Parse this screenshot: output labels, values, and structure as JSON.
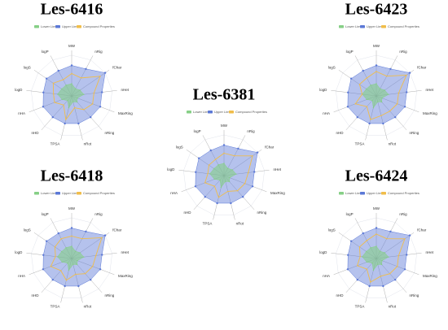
{
  "chart_data": [
    {
      "type": "radar",
      "title": "Les-6416",
      "categories": [
        "MW",
        "nRig",
        "fChar",
        "nHet",
        "MaxRing",
        "nRing",
        "nRot",
        "TPSA",
        "nHD",
        "nHA",
        "logD",
        "logS",
        "logP"
      ],
      "rlim": [
        0,
        1
      ],
      "series": [
        {
          "name": "Lower Limit",
          "color": "#86cf86",
          "values": [
            0.3,
            0.2,
            0.25,
            0.3,
            0.15,
            0.2,
            0.15,
            0.3,
            0.15,
            0.25,
            0.35,
            0.3,
            0.3
          ]
        },
        {
          "name": "Upper Limit",
          "color": "#5b78d6",
          "values": [
            0.75,
            0.75,
            1.0,
            0.75,
            0.75,
            0.7,
            0.7,
            0.7,
            0.7,
            0.75,
            0.7,
            0.75,
            0.7
          ]
        },
        {
          "name": "Compound Properties",
          "color": "#f0bd4a",
          "values": [
            0.55,
            0.5,
            0.85,
            0.55,
            0.55,
            0.45,
            0.3,
            0.6,
            0.3,
            0.45,
            0.45,
            0.55,
            0.45
          ]
        }
      ]
    },
    {
      "type": "radar",
      "title": "Les-6423",
      "categories": [
        "MW",
        "nRig",
        "fChar",
        "nHet",
        "MaxRing",
        "nRing",
        "nRot",
        "TPSA",
        "nHD",
        "nHA",
        "logD",
        "logS",
        "logP"
      ],
      "rlim": [
        0,
        1
      ],
      "series": [
        {
          "name": "Lower Limit",
          "color": "#86cf86",
          "values": [
            0.3,
            0.2,
            0.25,
            0.3,
            0.15,
            0.2,
            0.15,
            0.3,
            0.15,
            0.25,
            0.35,
            0.3,
            0.3
          ]
        },
        {
          "name": "Upper Limit",
          "color": "#5b78d6",
          "values": [
            0.75,
            0.75,
            1.0,
            0.75,
            0.75,
            0.7,
            0.7,
            0.7,
            0.7,
            0.75,
            0.7,
            0.75,
            0.7
          ]
        },
        {
          "name": "Compound Properties",
          "color": "#f0bd4a",
          "values": [
            0.6,
            0.55,
            0.9,
            0.55,
            0.55,
            0.5,
            0.5,
            0.6,
            0.35,
            0.55,
            0.35,
            0.5,
            0.5
          ]
        }
      ]
    },
    {
      "type": "radar",
      "title": "Les-6381",
      "categories": [
        "MW",
        "nRig",
        "fChar",
        "nHet",
        "MaxRing",
        "nRing",
        "nRot",
        "TPSA",
        "nHD",
        "nHA",
        "logD",
        "logS",
        "logP"
      ],
      "rlim": [
        0,
        1
      ],
      "series": [
        {
          "name": "Lower Limit",
          "color": "#86cf86",
          "values": [
            0.3,
            0.2,
            0.25,
            0.3,
            0.15,
            0.2,
            0.15,
            0.3,
            0.15,
            0.25,
            0.35,
            0.3,
            0.3
          ]
        },
        {
          "name": "Upper Limit",
          "color": "#5b78d6",
          "values": [
            0.75,
            0.75,
            1.0,
            0.75,
            0.75,
            0.7,
            0.7,
            0.7,
            0.7,
            0.75,
            0.7,
            0.75,
            0.7
          ]
        },
        {
          "name": "Compound Properties",
          "color": "#f0bd4a",
          "values": [
            0.55,
            0.55,
            0.85,
            0.6,
            0.55,
            0.5,
            0.4,
            0.55,
            0.35,
            0.5,
            0.4,
            0.45,
            0.45
          ]
        }
      ]
    },
    {
      "type": "radar",
      "title": "Les-6418",
      "categories": [
        "MW",
        "nRig",
        "fChar",
        "nHet",
        "MaxRing",
        "nRing",
        "nRot",
        "TPSA",
        "nHD",
        "nHA",
        "logD",
        "logS",
        "logP"
      ],
      "rlim": [
        0,
        1
      ],
      "series": [
        {
          "name": "Lower Limit",
          "color": "#86cf86",
          "values": [
            0.3,
            0.2,
            0.25,
            0.3,
            0.15,
            0.2,
            0.15,
            0.3,
            0.15,
            0.25,
            0.35,
            0.3,
            0.3
          ]
        },
        {
          "name": "Upper Limit",
          "color": "#5b78d6",
          "values": [
            0.75,
            0.75,
            1.0,
            0.75,
            0.75,
            0.7,
            0.7,
            0.7,
            0.7,
            0.75,
            0.7,
            0.75,
            0.7
          ]
        },
        {
          "name": "Compound Properties",
          "color": "#f0bd4a",
          "values": [
            0.55,
            0.55,
            0.9,
            0.6,
            0.55,
            0.5,
            0.4,
            0.55,
            0.4,
            0.55,
            0.4,
            0.5,
            0.55
          ]
        }
      ]
    },
    {
      "type": "radar",
      "title": "Les-6424",
      "categories": [
        "MW",
        "nRig",
        "fChar",
        "nHet",
        "MaxRing",
        "nRing",
        "nRot",
        "TPSA",
        "nHD",
        "nHA",
        "logD",
        "logS",
        "logP"
      ],
      "rlim": [
        0,
        1
      ],
      "series": [
        {
          "name": "Lower Limit",
          "color": "#86cf86",
          "values": [
            0.3,
            0.2,
            0.25,
            0.3,
            0.15,
            0.2,
            0.15,
            0.3,
            0.15,
            0.25,
            0.35,
            0.3,
            0.3
          ]
        },
        {
          "name": "Upper Limit",
          "color": "#5b78d6",
          "values": [
            0.75,
            0.75,
            1.0,
            0.75,
            0.75,
            0.7,
            0.7,
            0.7,
            0.7,
            0.75,
            0.7,
            0.75,
            0.7
          ]
        },
        {
          "name": "Compound Properties",
          "color": "#f0bd4a",
          "values": [
            0.6,
            0.55,
            0.85,
            0.55,
            0.55,
            0.5,
            0.45,
            0.6,
            0.35,
            0.5,
            0.4,
            0.5,
            0.5
          ]
        }
      ]
    }
  ]
}
